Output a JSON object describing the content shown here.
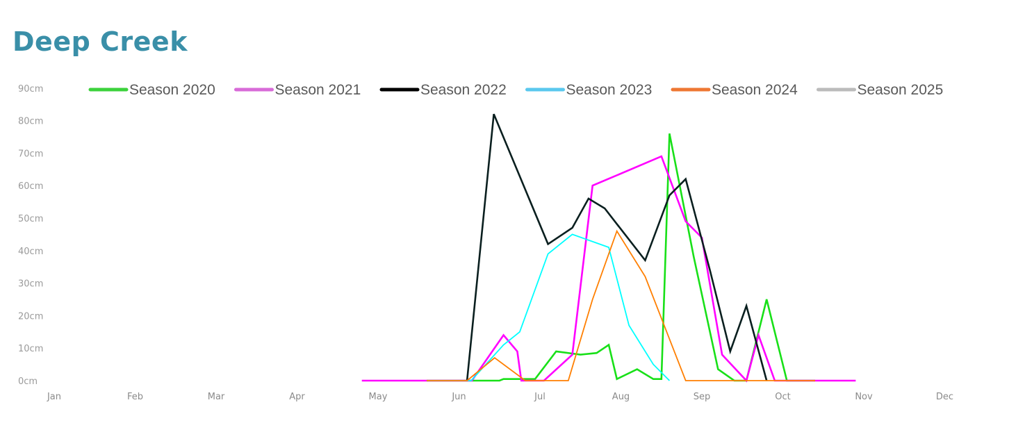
{
  "chart_data": {
    "type": "line",
    "title": "Deep Creek",
    "xlabel": "",
    "ylabel": "",
    "x_ticks": [
      "Jan",
      "Feb",
      "Mar",
      "Apr",
      "May",
      "Jun",
      "Jul",
      "Aug",
      "Sep",
      "Oct",
      "Nov",
      "Dec"
    ],
    "y_ticks": [
      "0cm",
      "10cm",
      "20cm",
      "30cm",
      "40cm",
      "50cm",
      "60cm",
      "70cm",
      "80cm",
      "90cm"
    ],
    "ylim": [
      0,
      90
    ],
    "xlim_months": [
      0,
      11
    ],
    "legend_position": "top",
    "grid": false,
    "series": [
      {
        "name": "Season 2020",
        "color": "#18e018",
        "legend_color": "#3cd23c",
        "points": [
          [
            4.6,
            0
          ],
          [
            5.1,
            0
          ],
          [
            5.5,
            0
          ],
          [
            5.55,
            0.5
          ],
          [
            5.94,
            0.5
          ],
          [
            6.2,
            9
          ],
          [
            6.5,
            8
          ],
          [
            6.7,
            8.5
          ],
          [
            6.85,
            11
          ],
          [
            6.95,
            0.5
          ],
          [
            7.2,
            3.5
          ],
          [
            7.4,
            0.5
          ],
          [
            7.5,
            0.5
          ],
          [
            7.6,
            76
          ],
          [
            7.9,
            38
          ],
          [
            8.2,
            3.5
          ],
          [
            8.4,
            0
          ],
          [
            8.55,
            0
          ],
          [
            8.8,
            25
          ],
          [
            9.05,
            0
          ],
          [
            9.3,
            0
          ],
          [
            9.4,
            0
          ]
        ]
      },
      {
        "name": "Season 2021",
        "color": "#ff00ff",
        "legend_color": "#d86bd8",
        "points": [
          [
            3.8,
            0
          ],
          [
            4.6,
            0
          ],
          [
            5.16,
            0
          ],
          [
            5.55,
            14
          ],
          [
            5.72,
            9
          ],
          [
            5.77,
            0
          ],
          [
            6.05,
            0
          ],
          [
            6.4,
            8
          ],
          [
            6.65,
            60
          ],
          [
            7.5,
            69
          ],
          [
            7.8,
            49
          ],
          [
            8.0,
            44
          ],
          [
            8.25,
            8
          ],
          [
            8.55,
            0
          ],
          [
            8.7,
            14
          ],
          [
            8.9,
            0
          ],
          [
            9.3,
            0
          ],
          [
            9.9,
            0
          ]
        ]
      },
      {
        "name": "Season 2022",
        "color": "#0a1f1f",
        "legend_color": "#000000",
        "points": [
          [
            5.1,
            0
          ],
          [
            5.43,
            82
          ],
          [
            6.1,
            42
          ],
          [
            6.4,
            47
          ],
          [
            6.6,
            56
          ],
          [
            6.8,
            53
          ],
          [
            7.3,
            37
          ],
          [
            7.6,
            57
          ],
          [
            7.8,
            62
          ],
          [
            8.1,
            34
          ],
          [
            8.35,
            9
          ],
          [
            8.55,
            23
          ],
          [
            8.8,
            0
          ]
        ]
      },
      {
        "name": "Season 2023",
        "color": "#00ffff",
        "legend_color": "#5ac8ee",
        "points": [
          [
            4.6,
            0
          ],
          [
            5.15,
            0
          ],
          [
            5.55,
            11
          ],
          [
            5.75,
            15
          ],
          [
            6.1,
            39
          ],
          [
            6.4,
            45
          ],
          [
            6.85,
            41
          ],
          [
            7.1,
            17
          ],
          [
            7.4,
            5
          ],
          [
            7.6,
            0
          ]
        ]
      },
      {
        "name": "Season 2024",
        "color": "#ff7f00",
        "legend_color": "#ee7733",
        "points": [
          [
            4.6,
            0
          ],
          [
            5.1,
            0
          ],
          [
            5.44,
            7
          ],
          [
            5.82,
            0
          ],
          [
            6.05,
            0
          ],
          [
            6.35,
            0
          ],
          [
            6.65,
            25
          ],
          [
            6.95,
            46
          ],
          [
            7.3,
            32
          ],
          [
            7.8,
            0
          ],
          [
            8.3,
            0
          ],
          [
            8.5,
            0
          ],
          [
            9.0,
            0
          ],
          [
            9.4,
            0
          ]
        ]
      },
      {
        "name": "Season 2025",
        "color": "#bbbbbb",
        "legend_color": "#bbbbbb",
        "points": []
      }
    ]
  }
}
